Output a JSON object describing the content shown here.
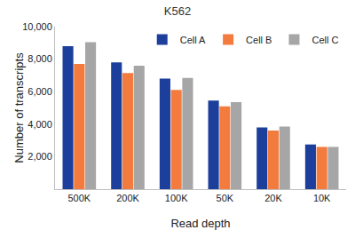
{
  "chart_data": {
    "type": "bar",
    "title": "K562",
    "x_label": "Read depth",
    "y_label": "Number of transcripts",
    "categories": [
      "500K",
      "200K",
      "100K",
      "50K",
      "20K",
      "10K"
    ],
    "series": [
      {
        "name": "Cell A",
        "color": "#1c3f9c",
        "values": [
          8800,
          7800,
          6800,
          5450,
          3800,
          2750
        ]
      },
      {
        "name": "Cell B",
        "color": "#f47b3e",
        "values": [
          7700,
          7150,
          6100,
          5100,
          3600,
          2600
        ]
      },
      {
        "name": "Cell C",
        "color": "#a6a6a6",
        "values": [
          9050,
          7600,
          6850,
          5350,
          3850,
          2600
        ]
      }
    ],
    "ylim": [
      0,
      10000
    ],
    "yticks": [
      {
        "value": 2000,
        "label": "2,000"
      },
      {
        "value": 4000,
        "label": "4,000"
      },
      {
        "value": 6000,
        "label": "6,000"
      },
      {
        "value": 8000,
        "label": "8,000"
      },
      {
        "value": 10000,
        "label": "10,000"
      }
    ],
    "grid": false,
    "legend": "top right"
  }
}
